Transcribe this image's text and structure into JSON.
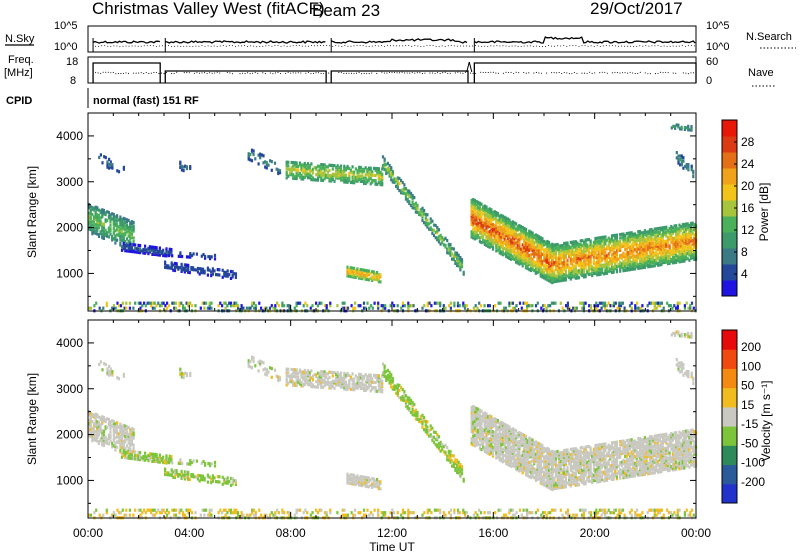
{
  "header": {
    "station": "Christmas Valley West (fitACF)",
    "beam": "Beam 23",
    "date": "29/Oct/2017"
  },
  "strips": {
    "nsky_label": "N.Sky",
    "nsky_ticks": [
      "10^5",
      "10^0"
    ],
    "nsearch_label": "N.Search",
    "nsearch_ticks": [
      "10^5",
      "10^0"
    ],
    "freq_label": "Freq.",
    "freq_unit": "[MHz]",
    "freq_ticks": [
      "18",
      "8"
    ],
    "nave_label": "Nave",
    "nave_ticks": [
      "60",
      "0"
    ],
    "cpid_label": "CPID",
    "cpid_text": "normal (fast) 151 RF"
  },
  "chart_data": [
    {
      "type": "heatmap",
      "name": "power",
      "ylabel": "Slant Range [km]",
      "yticks": [
        "4000",
        "3000",
        "2000",
        "1000"
      ],
      "ylim": [
        180,
        4500
      ],
      "xlim": [
        "00:00",
        "24:00"
      ],
      "colorbar": {
        "label": "Power [dB]",
        "ticks": [
          "28",
          "24",
          "20",
          "16",
          "12",
          "8",
          "4"
        ],
        "colors": [
          "#1f14e0",
          "#24479a",
          "#3c7a86",
          "#3d9a6a",
          "#4ab05a",
          "#a6c43c",
          "#f2c41a",
          "#f0a21a",
          "#e36f16",
          "#dc3a12",
          "#e81808"
        ]
      },
      "features": [
        {
          "t": [
            0.0,
            1.8
          ],
          "r": [
            2150,
            1900
          ],
          "level": "12"
        },
        {
          "t": [
            1.2,
            5.5
          ],
          "r": [
            1600,
            1050
          ],
          "level": "4-8"
        },
        {
          "t": [
            6.5,
            8.0
          ],
          "r": [
            3500,
            3300
          ],
          "level": "8"
        },
        {
          "t": [
            7.8,
            11.5
          ],
          "r": [
            3250,
            3150
          ],
          "level": "12-16"
        },
        {
          "t": [
            11.8,
            14.7
          ],
          "r": [
            3400,
            1200
          ],
          "level": "8-12"
        },
        {
          "t": [
            10.2,
            11.4
          ],
          "r": [
            1050,
            950
          ],
          "level": "16-20"
        },
        {
          "t": [
            15.1,
            24.0
          ],
          "r": [
            2100,
            1700
          ],
          "level": "16-28"
        }
      ]
    },
    {
      "type": "heatmap",
      "name": "velocity",
      "ylabel": "Slant Range [km]",
      "yticks": [
        "4000",
        "3000",
        "2000",
        "1000"
      ],
      "ylim": [
        180,
        4500
      ],
      "xlabel": "Time UT",
      "xticks": [
        "00:00",
        "04:00",
        "08:00",
        "12:00",
        "16:00",
        "20:00",
        "00:00"
      ],
      "colorbar": {
        "label": "Velocity [m s⁻¹]",
        "ticks": [
          "200",
          "100",
          "50",
          "15",
          "-15",
          "-50",
          "-100",
          "-200"
        ],
        "colors": [
          "#2233cc",
          "#2a5a9a",
          "#2e8a5a",
          "#7cc43a",
          "#c9c9c1",
          "#f0bc20",
          "#f58a12",
          "#f04a10",
          "#e60a0a"
        ]
      }
    }
  ]
}
